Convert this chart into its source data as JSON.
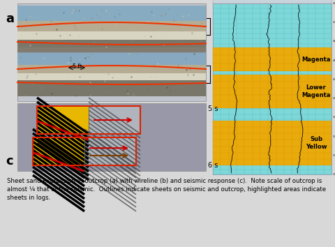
{
  "fig_bg": "#d8d8d8",
  "caption": "Sheet sand expression in outcrop (a) with wireline (b) and seismic response (c).  Note scale of outcrop is\nalmost ¼ that of the seismic.  Outlines indicate sheets on seismic and outcrop, highlighted areas indicate\nsheets in logs.",
  "label_a": "a",
  "label_c": "c",
  "label_5s": "5 s",
  "label_6s": "6 s",
  "wireline_cyan": "#7dd8d8",
  "wireline_orange": "#f0a800",
  "wireline_grid": "#4499bb",
  "label_magenta": "Magenta",
  "label_lower_magenta": "Lower\nMagenta",
  "label_sub_yellow": "Sub\nYellow",
  "outcrop_outline": "#ee3300",
  "seismic_box": "#dd2200",
  "panel_border": "#888888",
  "outcrop_sky": "#8ab0c8",
  "outcrop_rock1": "#b8a888",
  "outcrop_rock2": "#a09880",
  "outcrop_dark": "#787068",
  "seismic_grey": "#9898a8",
  "seismic_yellow": "#e8b800",
  "seismic_black": "#101010",
  "seismic_red": "#cc0000"
}
